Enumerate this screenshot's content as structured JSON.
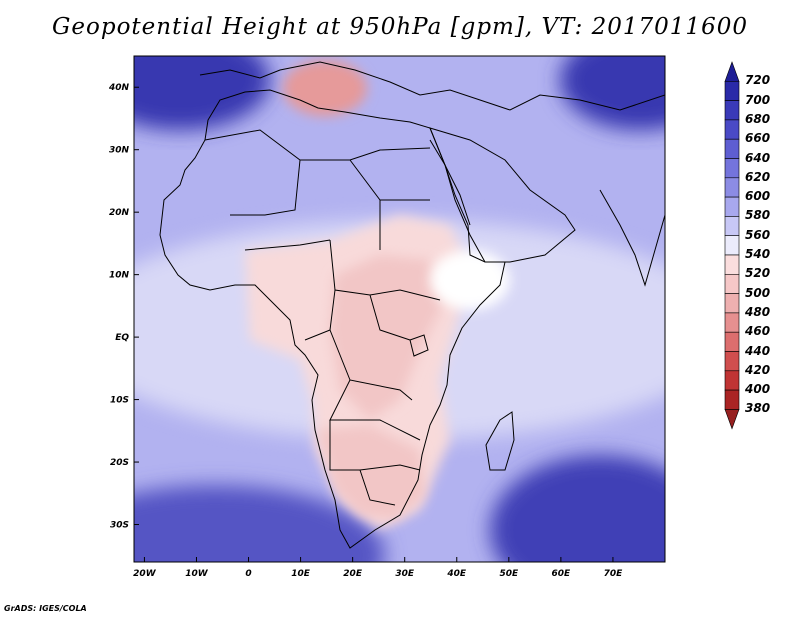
{
  "title": "Geopotential Height at 950hPa [gpm], VT: 2017011600",
  "credit": "GrADS: IGES/COLA",
  "axes": {
    "lat_ticks": [
      {
        "lat": 40,
        "label": "40N"
      },
      {
        "lat": 30,
        "label": "30N"
      },
      {
        "lat": 20,
        "label": "20N"
      },
      {
        "lat": 10,
        "label": "10N"
      },
      {
        "lat": 0,
        "label": "EQ"
      },
      {
        "lat": -10,
        "label": "10S"
      },
      {
        "lat": -20,
        "label": "20S"
      },
      {
        "lat": -30,
        "label": "30S"
      }
    ],
    "lon_ticks": [
      {
        "lon": -20,
        "label": "20W"
      },
      {
        "lon": -10,
        "label": "10W"
      },
      {
        "lon": 0,
        "label": "0"
      },
      {
        "lon": 10,
        "label": "10E"
      },
      {
        "lon": 20,
        "label": "20E"
      },
      {
        "lon": 30,
        "label": "30E"
      },
      {
        "lon": 40,
        "label": "40E"
      },
      {
        "lon": 50,
        "label": "50E"
      },
      {
        "lon": 60,
        "label": "60E"
      },
      {
        "lon": 70,
        "label": "70E"
      }
    ],
    "lon_range": [
      -22,
      80
    ],
    "lat_range": [
      -36,
      45
    ]
  },
  "colorbar": {
    "levels": [
      720,
      700,
      680,
      660,
      640,
      620,
      600,
      580,
      560,
      540,
      520,
      500,
      480,
      460,
      440,
      420,
      400,
      380
    ],
    "colors": [
      "#1e1e96",
      "#2a2aa8",
      "#3a3ab8",
      "#4a4ac6",
      "#5e5ed2",
      "#7474dc",
      "#8c8ce4",
      "#a8a8ee",
      "#c8c8f6",
      "#ececfc",
      "#fbdede",
      "#f6c8c8",
      "#eeb0b0",
      "#e69090",
      "#dc6e6e",
      "#d04e4e",
      "#c03434",
      "#aa2424",
      "#962020"
    ]
  },
  "regions": {
    "ocean_base": "#b2b2f0",
    "north_polar_high": "#3838b0",
    "south_atlantic_high": "#5454c4",
    "south_indian_high": "#4040b6",
    "land_low": "#f8dada",
    "land_lower": "#f2c6c6",
    "med_low": "#e69a9a",
    "near_neutral": "#ffffff"
  }
}
